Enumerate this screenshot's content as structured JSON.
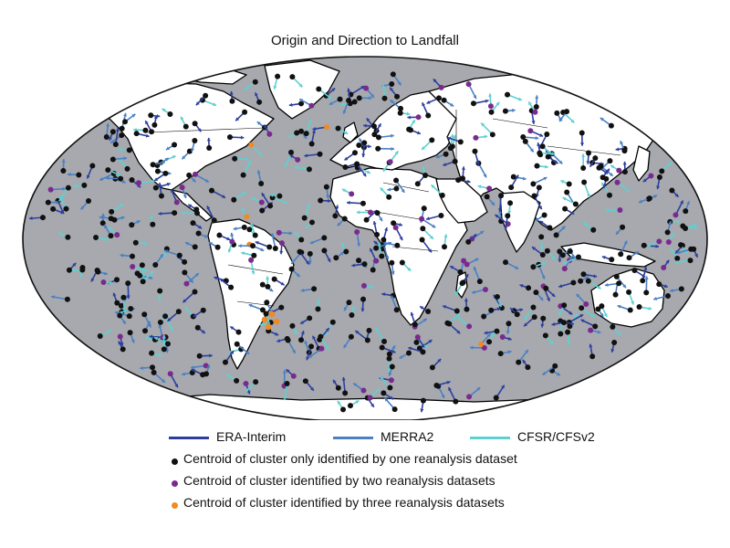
{
  "title": "Origin and Direction to Landfall",
  "colors": {
    "ocean": "#a7a9ae",
    "land": "#ffffff",
    "coast": "#000000",
    "era": "#2c3f9e",
    "merra": "#4a80c4",
    "cfsr": "#5fd0d0",
    "one": "#111111",
    "two": "#7a2a8e",
    "three": "#f08a24"
  },
  "legend": {
    "lines": [
      {
        "label": "ERA-Interim",
        "color": "#2c3f9e"
      },
      {
        "label": "MERRA2",
        "color": "#4a80c4"
      },
      {
        "label": "CFSR/CFSv2",
        "color": "#5fd0d0"
      }
    ],
    "dots": [
      {
        "label": "Centroid of cluster only identified by one reanalysis dataset",
        "color": "#111111"
      },
      {
        "label": "Centroid of cluster identified by two reanalysis datasets",
        "color": "#7a2a8e"
      },
      {
        "label": "Centroid of cluster identified by three reanalysis datasets",
        "color": "#f08a24"
      }
    ]
  }
}
